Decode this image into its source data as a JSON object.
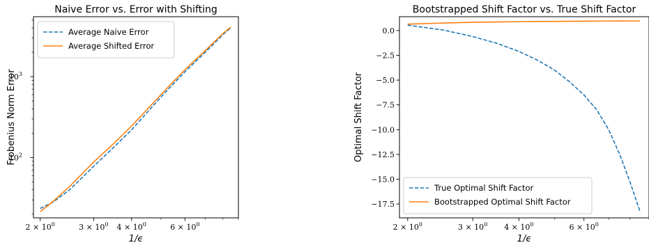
{
  "chart_data": [
    {
      "type": "line",
      "title": "Naive Error vs. Error with Shifting",
      "xlabel": "1/ϵ",
      "ylabel": "Frobenius Norm Error",
      "xscale": "log",
      "yscale": "log",
      "xlim": [
        1.9,
        9.0
      ],
      "ylim": [
        18,
        5500
      ],
      "xticks": [
        {
          "value": 2,
          "base": "2 × 10",
          "exp": "0"
        },
        {
          "value": 3,
          "base": "3 × 10",
          "exp": "0"
        },
        {
          "value": 4,
          "base": "4 × 10",
          "exp": "0"
        },
        {
          "value": 6,
          "base": "6 × 10",
          "exp": "0"
        }
      ],
      "yticks": [
        {
          "value": 100,
          "base": "10",
          "exp": "2"
        },
        {
          "value": 1000,
          "base": "10",
          "exp": "3"
        }
      ],
      "legend_position": "top-left",
      "series": [
        {
          "name": "Average Naive Error",
          "color": "#1f77b4",
          "style": "dashed",
          "x": [
            2.0,
            2.2,
            2.5,
            3.0,
            3.5,
            4.0,
            5.0,
            6.0,
            7.0,
            8.0,
            8.5
          ],
          "y": [
            23.5,
            28,
            40,
            78,
            135,
            220,
            560,
            1150,
            2000,
            3300,
            4000
          ]
        },
        {
          "name": "Average Shifted Error",
          "color": "#ff7f0e",
          "style": "solid",
          "x": [
            2.0,
            2.2,
            2.5,
            3.0,
            3.5,
            4.0,
            5.0,
            6.0,
            7.0,
            8.0,
            8.5
          ],
          "y": [
            21.5,
            28.5,
            44,
            88,
            150,
            245,
            600,
            1220,
            2100,
            3400,
            4100
          ]
        }
      ]
    },
    {
      "type": "line",
      "title": "Bootstrapped Shift Factor vs. True Shift Factor",
      "xlabel": "1/ϵ",
      "ylabel": "Optimal Shift Factor",
      "xscale": "log",
      "yscale": "linear",
      "xlim": [
        1.9,
        9.0
      ],
      "ylim": [
        -18.9,
        1.4
      ],
      "xticks": [
        {
          "value": 2,
          "base": "2 × 10",
          "exp": "0"
        },
        {
          "value": 3,
          "base": "3 × 10",
          "exp": "0"
        },
        {
          "value": 4,
          "base": "4 × 10",
          "exp": "0"
        },
        {
          "value": 6,
          "base": "6 × 10",
          "exp": "0"
        }
      ],
      "yticks": [
        {
          "value": 0,
          "label": "0.0"
        },
        {
          "value": -2.5,
          "label": "−2.5"
        },
        {
          "value": -5,
          "label": "−5.0"
        },
        {
          "value": -7.5,
          "label": "−7.5"
        },
        {
          "value": -10,
          "label": "−10.0"
        },
        {
          "value": -12.5,
          "label": "−12.5"
        },
        {
          "value": -15,
          "label": "−15.0"
        },
        {
          "value": -17.5,
          "label": "−17.5"
        }
      ],
      "legend_position": "lower-left",
      "series": [
        {
          "name": "True Optimal Shift Factor",
          "color": "#1f77b4",
          "style": "dashed",
          "x": [
            2.0,
            2.5,
            3.0,
            3.5,
            4.0,
            4.5,
            5.0,
            5.5,
            6.0,
            6.5,
            7.0,
            7.5,
            8.0,
            8.5
          ],
          "y": [
            0.55,
            0.05,
            -0.6,
            -1.3,
            -2.1,
            -3.0,
            -4.0,
            -5.2,
            -6.5,
            -8.0,
            -10.0,
            -12.5,
            -15.3,
            -18.2
          ]
        },
        {
          "name": "Bootstrapped Optimal Shift Factor",
          "color": "#ff7f0e",
          "style": "solid",
          "x": [
            2.0,
            2.5,
            3.0,
            3.5,
            4.0,
            5.0,
            6.0,
            7.0,
            8.0,
            8.5
          ],
          "y": [
            0.65,
            0.76,
            0.83,
            0.87,
            0.9,
            0.93,
            0.95,
            0.96,
            0.97,
            0.97
          ]
        }
      ]
    }
  ]
}
